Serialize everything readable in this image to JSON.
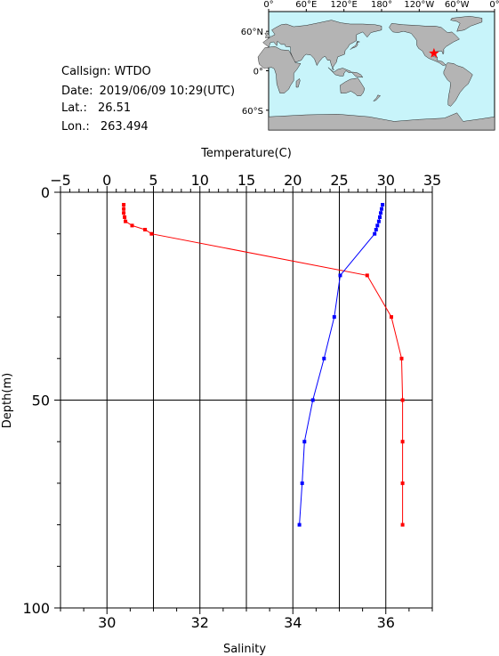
{
  "station": {
    "callsign_label": "Callsign:",
    "callsign": "WTDO",
    "date_label": "Date:",
    "date": "2019/06/09 10:29(UTC)",
    "lat_label": "Lat.:",
    "lat": "26.51",
    "lon_label": "Lon.:",
    "lon": "263.494"
  },
  "map": {
    "top_ticks": [
      "0°",
      "60°E",
      "120°E",
      "180°",
      "120°W",
      "60°W",
      "0°"
    ],
    "left_ticks": [
      "60°N",
      "0°",
      "60°S"
    ],
    "ocean_color": "#c8f4fa",
    "land_color": "#b4b4b4",
    "marker_color": "#ff0000",
    "marker": {
      "lon": 263.494,
      "lat": 26.51
    }
  },
  "chart_data": {
    "type": "line",
    "title": "",
    "top_axis": {
      "label": "Temperature(C)",
      "range": [
        -5,
        35
      ],
      "ticks": [
        "−5",
        "0",
        "5",
        "10",
        "15",
        "20",
        "25",
        "30",
        "35"
      ]
    },
    "bottom_axis": {
      "label": "Salinity",
      "range": [
        29,
        37
      ],
      "ticks": [
        "30",
        "32",
        "34",
        "36"
      ]
    },
    "y_axis": {
      "label": "Depth(m)",
      "range": [
        0,
        100
      ],
      "inverted": true,
      "ticks": [
        "0",
        "50",
        "100"
      ]
    },
    "grid": true,
    "series": [
      {
        "color": "#ff0000",
        "axis": "temperature",
        "points": [
          {
            "x": 1.8,
            "depth": 3
          },
          {
            "x": 1.8,
            "depth": 4
          },
          {
            "x": 1.8,
            "depth": 5
          },
          {
            "x": 1.9,
            "depth": 6
          },
          {
            "x": 2.0,
            "depth": 7
          },
          {
            "x": 2.7,
            "depth": 8
          },
          {
            "x": 4.1,
            "depth": 9
          },
          {
            "x": 4.8,
            "depth": 10
          },
          {
            "x": 28.0,
            "depth": 20
          },
          {
            "x": 30.6,
            "depth": 30
          },
          {
            "x": 31.7,
            "depth": 40
          },
          {
            "x": 31.8,
            "depth": 50
          },
          {
            "x": 31.8,
            "depth": 60
          },
          {
            "x": 31.8,
            "depth": 70
          },
          {
            "x": 31.8,
            "depth": 80
          }
        ]
      },
      {
        "color": "#0000ff",
        "axis": "salinity",
        "points": [
          {
            "x": 35.93,
            "depth": 3
          },
          {
            "x": 35.91,
            "depth": 4
          },
          {
            "x": 35.89,
            "depth": 5
          },
          {
            "x": 35.87,
            "depth": 6
          },
          {
            "x": 35.85,
            "depth": 7
          },
          {
            "x": 35.82,
            "depth": 8
          },
          {
            "x": 35.79,
            "depth": 9
          },
          {
            "x": 35.76,
            "depth": 10
          },
          {
            "x": 35.02,
            "depth": 20
          },
          {
            "x": 34.89,
            "depth": 30
          },
          {
            "x": 34.67,
            "depth": 40
          },
          {
            "x": 34.43,
            "depth": 50
          },
          {
            "x": 34.25,
            "depth": 60
          },
          {
            "x": 34.2,
            "depth": 70
          },
          {
            "x": 34.14,
            "depth": 80
          }
        ]
      }
    ]
  }
}
